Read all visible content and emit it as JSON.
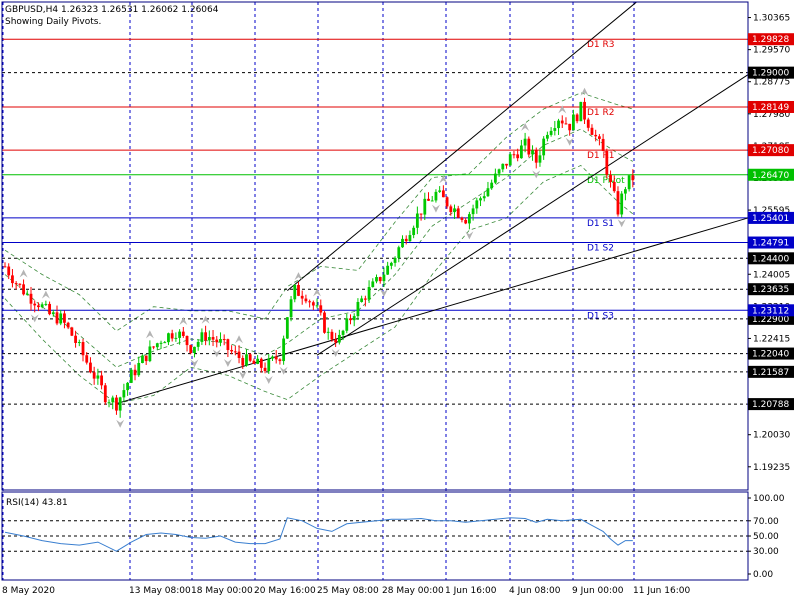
{
  "header": {
    "symbol_line": "GBPUSD,H4  1.26323 1.26531 1.26062 1.26064",
    "note": "Showing Daily Pivots."
  },
  "colors": {
    "bull": "#00c800",
    "bear": "#ff0000",
    "resistance": "#e00000",
    "support": "#0000c8",
    "pivot": "#00c000",
    "frame": "#000080",
    "grid": "#0000c8",
    "bollinger": "#3a8a3a",
    "rsi_line": "#3a7fd0",
    "trendline": "#000000"
  },
  "chart_data": [
    {
      "type": "candlestick",
      "name": "price",
      "price_axis_ticks": [
        "1.30365",
        "1.29570",
        "1.28775",
        "1.27980",
        "1.27185",
        "1.26390",
        "1.25595",
        "1.24800",
        "1.24005",
        "1.23210",
        "1.22415",
        "1.21620",
        "1.20825",
        "1.20030",
        "1.19235"
      ],
      "ylim": [
        1.1866,
        1.3075
      ],
      "time_labels": [
        "8 May 2020",
        "13 May 08:00",
        "18 May 00:00",
        "20 May 16:00",
        "25 May 08:00",
        "28 May 00:00",
        "1 Jun 16:00",
        "4 Jun 08:00",
        "9 Jun 00:00",
        "11 Jun 16:00"
      ],
      "pivot_lines": [
        {
          "label": "D1 R3",
          "price": 1.29828,
          "price_text": "1.29828",
          "kind": "resistance"
        },
        {
          "label": "D1 R2",
          "price": 1.28149,
          "price_text": "1.28149",
          "kind": "resistance"
        },
        {
          "label": "D1 R1",
          "price": 1.2708,
          "price_text": "1.27080",
          "kind": "resistance"
        },
        {
          "label": "D1 Pivot",
          "price": 1.2647,
          "price_text": "1.26470",
          "kind": "pivot"
        },
        {
          "label": "D1 S1",
          "price": 1.25401,
          "price_text": "1.25401",
          "kind": "support"
        },
        {
          "label": "D1 S2",
          "price": 1.24791,
          "price_text": "1.24791",
          "kind": "support"
        },
        {
          "label": "D1 S3",
          "price": 1.23112,
          "price_text": "1.23112",
          "kind": "support"
        }
      ],
      "price_levels": [
        {
          "price": 1.29,
          "price_text": "1.29000"
        },
        {
          "price": 1.244,
          "price_text": "1.24400"
        },
        {
          "price": 1.23635,
          "price_text": "1.23635"
        },
        {
          "price": 1.229,
          "price_text": "1.22900"
        },
        {
          "price": 1.2204,
          "price_text": "1.22040"
        },
        {
          "price": 1.21587,
          "price_text": "1.21587"
        },
        {
          "price": 1.20788,
          "price_text": "1.20788"
        }
      ],
      "close_path": [
        [
          0,
          1.242
        ],
        [
          3,
          1.238
        ],
        [
          6,
          1.235
        ],
        [
          9,
          1.233
        ],
        [
          12,
          1.23
        ],
        [
          15,
          1.229
        ],
        [
          18,
          1.225
        ],
        [
          21,
          1.22
        ],
        [
          24,
          1.215
        ],
        [
          27,
          1.21
        ],
        [
          30,
          1.208
        ],
        [
          34,
          1.215
        ],
        [
          38,
          1.22
        ],
        [
          42,
          1.224
        ],
        [
          46,
          1.226
        ],
        [
          50,
          1.222
        ],
        [
          54,
          1.225
        ],
        [
          58,
          1.223
        ],
        [
          62,
          1.22
        ],
        [
          66,
          1.218
        ],
        [
          70,
          1.217
        ],
        [
          74,
          1.22
        ],
        [
          76,
          1.23
        ],
        [
          78,
          1.236
        ],
        [
          81,
          1.235
        ],
        [
          84,
          1.231
        ],
        [
          87,
          1.225
        ],
        [
          90,
          1.224
        ],
        [
          94,
          1.231
        ],
        [
          97,
          1.235
        ],
        [
          100,
          1.238
        ],
        [
          104,
          1.243
        ],
        [
          108,
          1.25
        ],
        [
          112,
          1.256
        ],
        [
          116,
          1.26
        ],
        [
          120,
          1.257
        ],
        [
          124,
          1.254
        ],
        [
          128,
          1.259
        ],
        [
          132,
          1.264
        ],
        [
          136,
          1.269
        ],
        [
          140,
          1.272
        ],
        [
          143,
          1.268
        ],
        [
          146,
          1.276
        ],
        [
          149,
          1.279
        ],
        [
          152,
          1.277
        ],
        [
          155,
          1.281
        ],
        [
          158,
          1.276
        ],
        [
          161,
          1.27
        ],
        [
          163,
          1.262
        ],
        [
          165,
          1.256
        ],
        [
          167,
          1.262
        ],
        [
          169,
          1.264
        ]
      ],
      "bollinger": {
        "upper": [
          [
            0,
            1.246
          ],
          [
            10,
            1.24
          ],
          [
            20,
            1.235
          ],
          [
            30,
            1.226
          ],
          [
            40,
            1.232
          ],
          [
            50,
            1.231
          ],
          [
            60,
            1.231
          ],
          [
            70,
            1.229
          ],
          [
            76,
            1.237
          ],
          [
            85,
            1.242
          ],
          [
            95,
            1.241
          ],
          [
            105,
            1.253
          ],
          [
            115,
            1.264
          ],
          [
            125,
            1.265
          ],
          [
            135,
            1.274
          ],
          [
            145,
            1.281
          ],
          [
            155,
            1.285
          ],
          [
            165,
            1.282
          ],
          [
            169,
            1.281
          ]
        ],
        "middle": [
          [
            0,
            1.24
          ],
          [
            10,
            1.232
          ],
          [
            20,
            1.225
          ],
          [
            30,
            1.217
          ],
          [
            40,
            1.221
          ],
          [
            50,
            1.224
          ],
          [
            60,
            1.223
          ],
          [
            70,
            1.22
          ],
          [
            76,
            1.223
          ],
          [
            85,
            1.229
          ],
          [
            95,
            1.231
          ],
          [
            105,
            1.24
          ],
          [
            115,
            1.252
          ],
          [
            125,
            1.258
          ],
          [
            135,
            1.264
          ],
          [
            145,
            1.272
          ],
          [
            155,
            1.276
          ],
          [
            165,
            1.27
          ],
          [
            169,
            1.268
          ]
        ],
        "lower": [
          [
            0,
            1.234
          ],
          [
            10,
            1.224
          ],
          [
            20,
            1.215
          ],
          [
            30,
            1.208
          ],
          [
            40,
            1.21
          ],
          [
            50,
            1.217
          ],
          [
            60,
            1.215
          ],
          [
            70,
            1.211
          ],
          [
            76,
            1.209
          ],
          [
            85,
            1.215
          ],
          [
            95,
            1.221
          ],
          [
            105,
            1.227
          ],
          [
            115,
            1.24
          ],
          [
            125,
            1.251
          ],
          [
            135,
            1.254
          ],
          [
            145,
            1.263
          ],
          [
            155,
            1.267
          ],
          [
            165,
            1.258
          ],
          [
            169,
            1.255
          ]
        ]
      },
      "trendlines": [
        {
          "from": [
            30,
            1.208
          ],
          "to": [
            200,
            1.254
          ]
        },
        {
          "from": [
            76,
            1.236
          ],
          "to": [
            170,
            1.3075
          ]
        },
        {
          "from": [
            84,
            1.22
          ],
          "to": [
            200,
            1.2895
          ]
        }
      ]
    },
    {
      "type": "line",
      "name": "RSI(14)",
      "label": "RSI(14) 43.81",
      "ylim": [
        0,
        100
      ],
      "levels": [
        70,
        50,
        30
      ],
      "axis_ticks": [
        "100.00",
        "70.00",
        "50.00",
        "30.00",
        "0.00"
      ],
      "values": [
        [
          0,
          55
        ],
        [
          5,
          50
        ],
        [
          10,
          44
        ],
        [
          15,
          40
        ],
        [
          20,
          38
        ],
        [
          25,
          42
        ],
        [
          30,
          30
        ],
        [
          34,
          42
        ],
        [
          38,
          52
        ],
        [
          42,
          54
        ],
        [
          46,
          52
        ],
        [
          50,
          48
        ],
        [
          54,
          47
        ],
        [
          58,
          50
        ],
        [
          62,
          42
        ],
        [
          66,
          40
        ],
        [
          70,
          40
        ],
        [
          74,
          46
        ],
        [
          76,
          74
        ],
        [
          80,
          70
        ],
        [
          84,
          60
        ],
        [
          88,
          56
        ],
        [
          92,
          66
        ],
        [
          96,
          68
        ],
        [
          100,
          70
        ],
        [
          104,
          72
        ],
        [
          108,
          72
        ],
        [
          112,
          73
        ],
        [
          116,
          70
        ],
        [
          120,
          70
        ],
        [
          124,
          68
        ],
        [
          128,
          70
        ],
        [
          132,
          72
        ],
        [
          136,
          74
        ],
        [
          140,
          73
        ],
        [
          143,
          68
        ],
        [
          146,
          72
        ],
        [
          150,
          70
        ],
        [
          155,
          72
        ],
        [
          158,
          64
        ],
        [
          161,
          56
        ],
        [
          163,
          46
        ],
        [
          165,
          38
        ],
        [
          167,
          44
        ],
        [
          169,
          44
        ]
      ]
    }
  ]
}
